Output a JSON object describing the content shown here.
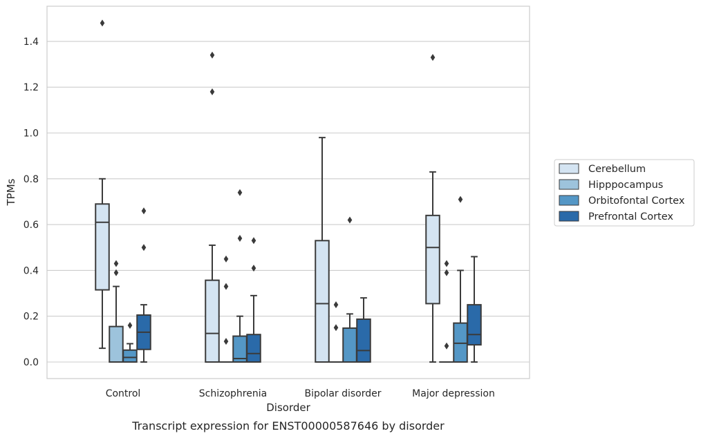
{
  "chart_data": {
    "type": "box",
    "xlabel": "Disorder",
    "ylabel": "TPMs",
    "caption": "Transcript expression for ENST00000587646 by disorder",
    "ylim": [
      -0.07,
      1.56
    ],
    "yticks": [
      "0.0",
      "0.2",
      "0.4",
      "0.6",
      "0.8",
      "1.0",
      "1.2",
      "1.4"
    ],
    "grid": "horizontal",
    "legend_position": "right",
    "categories": [
      "Control",
      "Schizophrenia",
      "Bipolar disorder",
      "Major depression"
    ],
    "series": [
      {
        "name": "Cerebellum",
        "color": "#d4e4f2",
        "boxes": [
          {
            "whislo": 0.06,
            "q1": 0.315,
            "med": 0.61,
            "q3": 0.69,
            "whishi": 0.8,
            "fliers": [
              1.48
            ]
          },
          {
            "whislo": 0.0,
            "q1": 0.0,
            "med": 0.125,
            "q3": 0.357,
            "whishi": 0.51,
            "fliers": [
              1.18,
              1.34
            ]
          },
          {
            "whislo": 0.0,
            "q1": 0.0,
            "med": 0.255,
            "q3": 0.53,
            "whishi": 0.98,
            "fliers": []
          },
          {
            "whislo": 0.0,
            "q1": 0.255,
            "med": 0.5,
            "q3": 0.64,
            "whishi": 0.83,
            "fliers": [
              1.33
            ]
          }
        ]
      },
      {
        "name": "Hipppocampus",
        "color": "#9dc3dc",
        "boxes": [
          {
            "whislo": 0.0,
            "q1": 0.0,
            "med": 0.0,
            "q3": 0.155,
            "whishi": 0.33,
            "fliers": [
              0.39,
              0.43
            ]
          },
          {
            "whislo": 0.0,
            "q1": 0.0,
            "med": 0.0,
            "q3": 0.0,
            "whishi": 0.0,
            "fliers": [
              0.09,
              0.33,
              0.45
            ]
          },
          {
            "whislo": 0.0,
            "q1": 0.0,
            "med": 0.0,
            "q3": 0.0,
            "whishi": 0.0,
            "fliers": [
              0.15,
              0.25
            ]
          },
          {
            "whislo": 0.0,
            "q1": 0.0,
            "med": 0.0,
            "q3": 0.0,
            "whishi": 0.0,
            "fliers": [
              0.07,
              0.39,
              0.43
            ]
          }
        ]
      },
      {
        "name": "Orbitofontal Cortex",
        "color": "#5497c6",
        "boxes": [
          {
            "whislo": 0.0,
            "q1": 0.0,
            "med": 0.02,
            "q3": 0.052,
            "whishi": 0.08,
            "fliers": [
              0.16
            ]
          },
          {
            "whislo": 0.0,
            "q1": 0.0,
            "med": 0.015,
            "q3": 0.113,
            "whishi": 0.2,
            "fliers": [
              0.54,
              0.74
            ]
          },
          {
            "whislo": 0.0,
            "q1": 0.0,
            "med": 0.0,
            "q3": 0.148,
            "whishi": 0.21,
            "fliers": [
              0.62
            ]
          },
          {
            "whislo": 0.0,
            "q1": 0.0,
            "med": 0.082,
            "q3": 0.17,
            "whishi": 0.4,
            "fliers": [
              0.71
            ]
          }
        ]
      },
      {
        "name": "Prefrontal Cortex",
        "color": "#2a6aa9",
        "boxes": [
          {
            "whislo": 0.0,
            "q1": 0.055,
            "med": 0.13,
            "q3": 0.205,
            "whishi": 0.25,
            "fliers": [
              0.5,
              0.66
            ]
          },
          {
            "whislo": 0.0,
            "q1": 0.0,
            "med": 0.037,
            "q3": 0.12,
            "whishi": 0.29,
            "fliers": [
              0.41,
              0.53
            ]
          },
          {
            "whislo": 0.0,
            "q1": 0.0,
            "med": 0.05,
            "q3": 0.187,
            "whishi": 0.28,
            "fliers": []
          },
          {
            "whislo": 0.0,
            "q1": 0.075,
            "med": 0.12,
            "q3": 0.25,
            "whishi": 0.46,
            "fliers": []
          }
        ]
      }
    ]
  }
}
